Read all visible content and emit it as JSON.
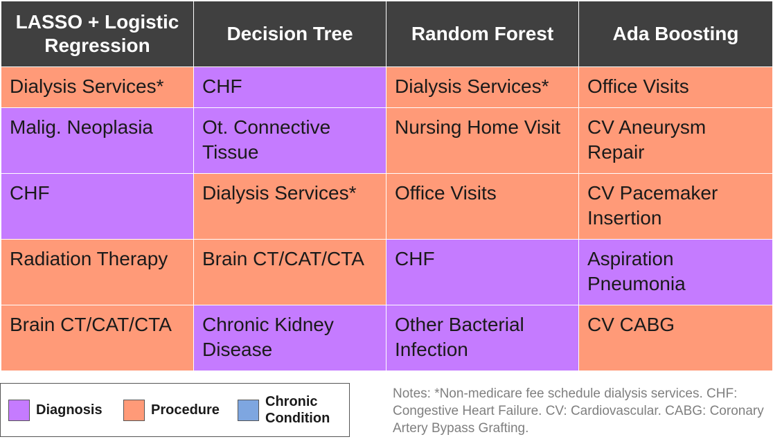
{
  "table": {
    "headers": [
      "LASSO + Logistic Regression",
      "Decision Tree",
      "Random Forest",
      "Ada Boosting"
    ],
    "rows": [
      [
        {
          "text": "Dialysis Services*",
          "category": "procedure"
        },
        {
          "text": "CHF",
          "category": "diagnosis"
        },
        {
          "text": "Dialysis Services*",
          "category": "procedure"
        },
        {
          "text": "Office Visits",
          "category": "procedure"
        }
      ],
      [
        {
          "text": "Malig. Neoplasia",
          "category": "diagnosis"
        },
        {
          "text": "Ot. Connective Tissue",
          "category": "diagnosis"
        },
        {
          "text": "Nursing Home Visit",
          "category": "procedure"
        },
        {
          "text": "CV Aneurysm Repair",
          "category": "procedure"
        }
      ],
      [
        {
          "text": "CHF",
          "category": "diagnosis"
        },
        {
          "text": "Dialysis Services*",
          "category": "procedure"
        },
        {
          "text": "Office Visits",
          "category": "procedure"
        },
        {
          "text": "CV Pacemaker Insertion",
          "category": "procedure"
        }
      ],
      [
        {
          "text": "Radiation Therapy",
          "category": "procedure"
        },
        {
          "text": "Brain CT/CAT/CTA",
          "category": "procedure"
        },
        {
          "text": "CHF",
          "category": "diagnosis"
        },
        {
          "text": "Aspiration Pneumonia",
          "category": "diagnosis"
        }
      ],
      [
        {
          "text": "Brain CT/CAT/CTA",
          "category": "procedure"
        },
        {
          "text": "Chronic Kidney Disease",
          "category": "diagnosis"
        },
        {
          "text": "Other Bacterial Infection",
          "category": "diagnosis"
        },
        {
          "text": "CV CABG",
          "category": "procedure"
        }
      ]
    ]
  },
  "legend": {
    "items": [
      {
        "label": "Diagnosis",
        "color": "#c57bff"
      },
      {
        "label": "Procedure",
        "color": "#ff9a78"
      },
      {
        "label": "Chronic Condition",
        "color": "#7ea6e0"
      }
    ]
  },
  "notes": "Notes: *Non-medicare fee schedule dialysis services. CHF: Congestive Heart Failure. CV: Cardiovascular. CABG: Coronary Artery Bypass Grafting.",
  "colors": {
    "header_bg": "#404040",
    "diagnosis": "#c57bff",
    "procedure": "#ff9a78",
    "chronic_condition": "#7ea6e0"
  }
}
